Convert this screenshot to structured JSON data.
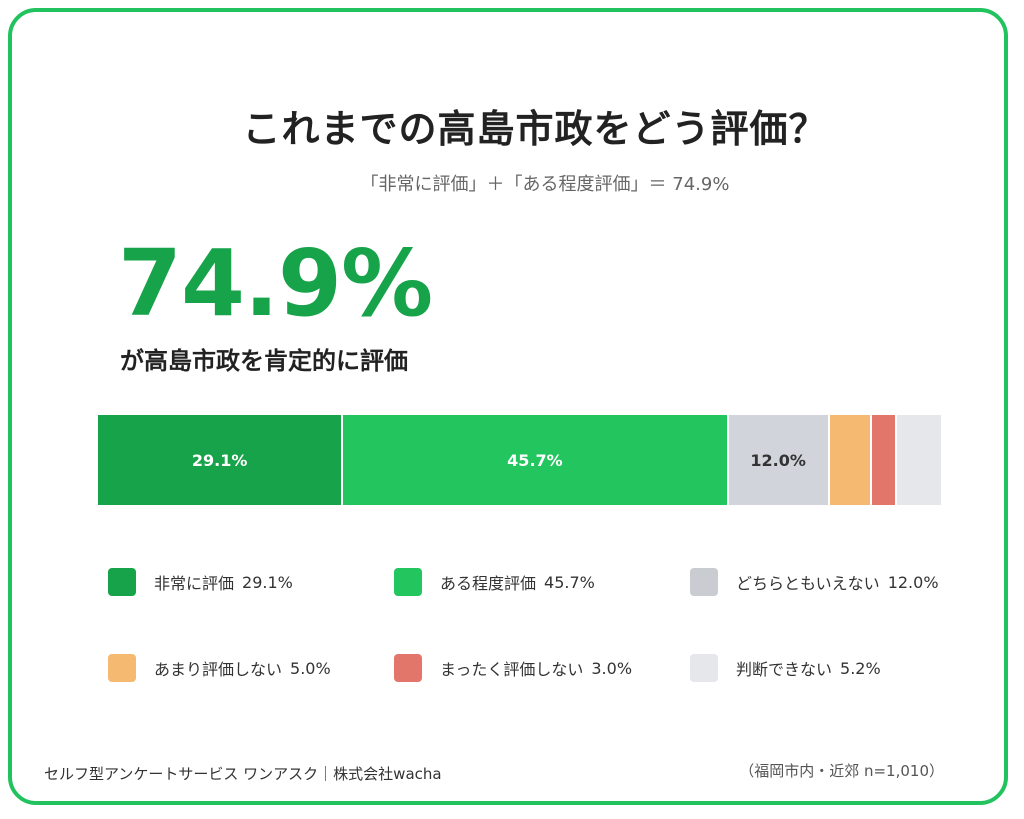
{
  "title": "これまでの高島市政をどう評価？",
  "subtitle": "「非常に評価」＋「ある程度評価」＝ 74.9%",
  "highlight": {
    "value": "74.9%",
    "caption": "が高島市政を肯定的に評価"
  },
  "footer": {
    "source": "セルフ型アンケートサービス ワンアスク｜株式会社wacha",
    "sample": "（福岡市内・近郊 n=1,010）"
  },
  "chart_data": {
    "type": "bar",
    "orientation": "horizontal-stacked",
    "title": "これまでの高島市政をどう評価？",
    "series": [
      {
        "name": "非常に評価",
        "value": 29.1,
        "label": "29.1%",
        "color": "#16a34a",
        "text_color": "#ffffff"
      },
      {
        "name": "ある程度評価",
        "value": 45.7,
        "label": "45.7%",
        "color": "#22c55e",
        "text_color": "#ffffff"
      },
      {
        "name": "どちらともいえない",
        "value": 12.0,
        "label": "12.0%",
        "color": "#d1d5db",
        "text_color": "#333333"
      },
      {
        "name": "あまり評価しない",
        "value": 5.0,
        "label": "",
        "color": "#f5b971",
        "text_color": "#333333"
      },
      {
        "name": "まったく評価しない",
        "value": 3.0,
        "label": "",
        "color": "#e2766b",
        "text_color": "#333333"
      },
      {
        "name": "判断できない",
        "value": 5.2,
        "label": "",
        "color": "#e5e7eb",
        "text_color": "#333333"
      }
    ],
    "legend": [
      {
        "name": "非常に評価",
        "value": "29.1%",
        "color": "#16a34a"
      },
      {
        "name": "ある程度評価",
        "value": "45.7%",
        "color": "#22c55e"
      },
      {
        "name": "どちらともいえない",
        "value": "12.0%",
        "color": "#c9ccd1"
      },
      {
        "name": "あまり評価しない",
        "value": "5.0%",
        "color": "#f5b971"
      },
      {
        "name": "まったく評価しない",
        "value": "3.0%",
        "color": "#e2766b"
      },
      {
        "name": "判断できない",
        "value": "5.2%",
        "color": "#e5e7eb"
      }
    ],
    "legend_placement": "bottom",
    "grid": false
  }
}
